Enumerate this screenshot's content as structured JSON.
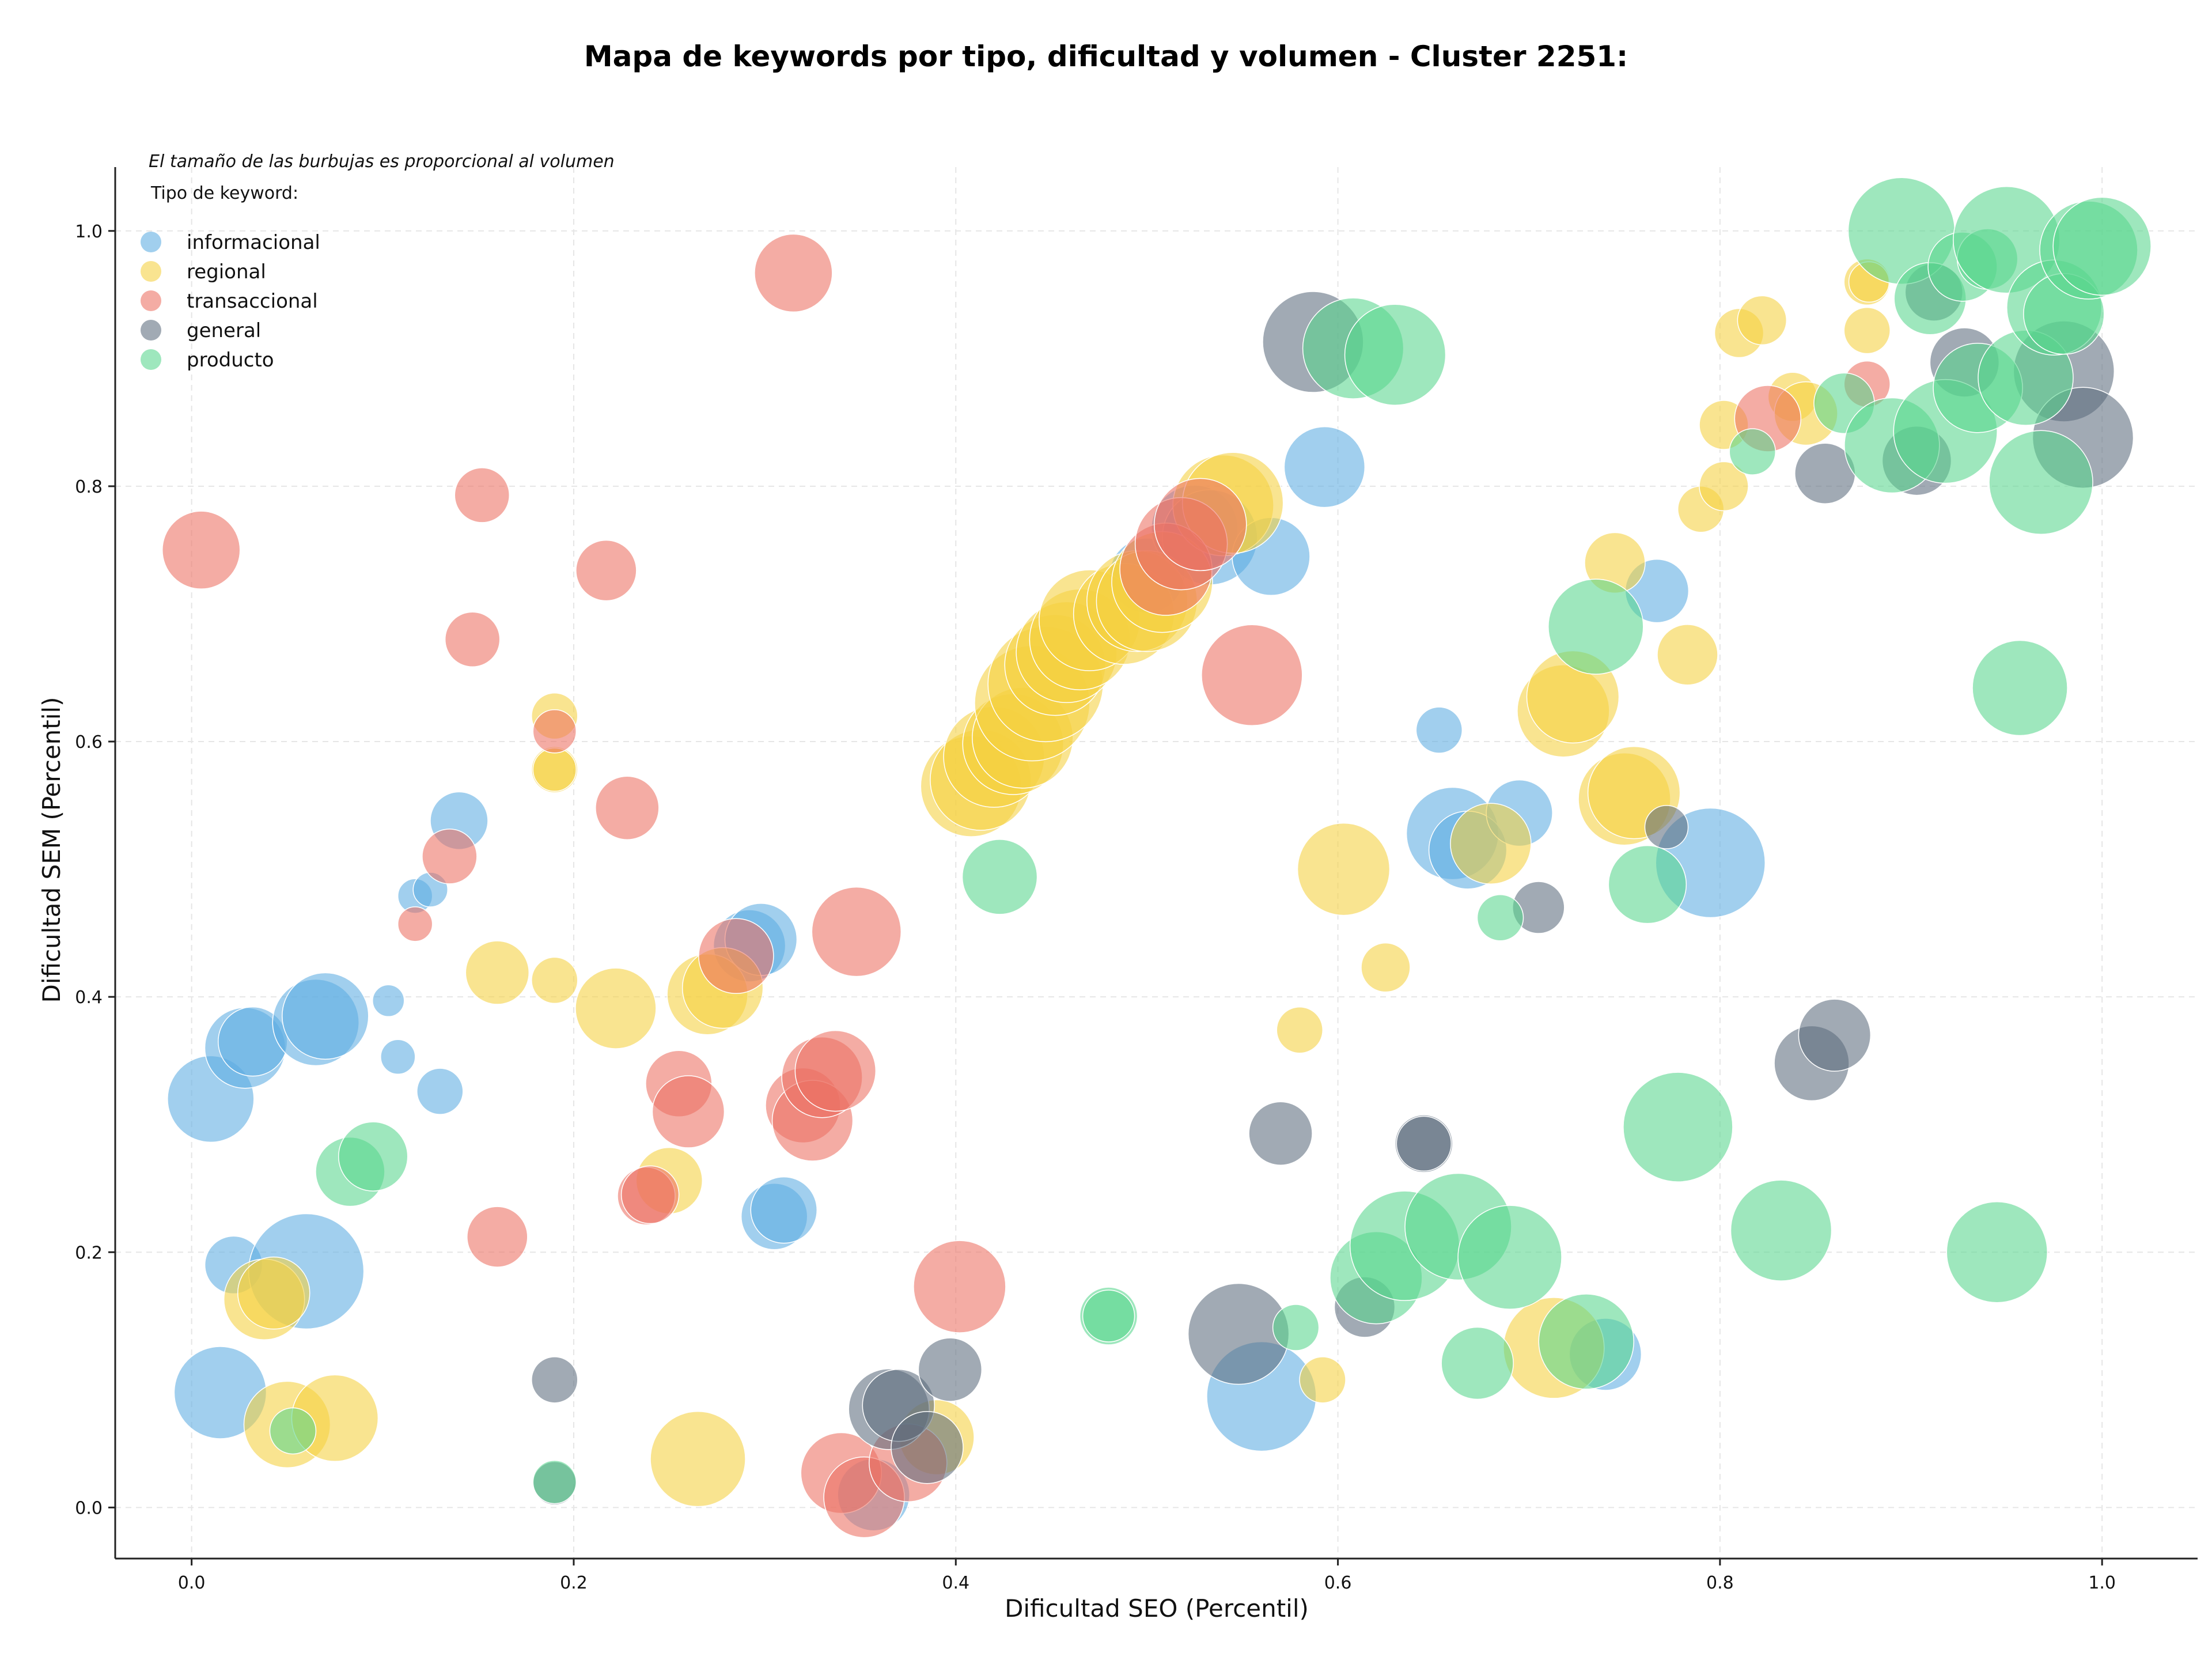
{
  "chart_data": {
    "type": "scatter",
    "title": "Mapa de keywords por tipo, dificultad y volumen - Cluster 2251:",
    "xlabel": "Dificultad SEO (Percentil)",
    "ylabel": "Dificultad SEM (Percentil)",
    "xlim": [
      -0.04,
      1.05
    ],
    "ylim": [
      -0.04,
      1.05
    ],
    "xticks": [
      "0.0",
      "0.2",
      "0.4",
      "0.6",
      "0.8",
      "1.0"
    ],
    "yticks": [
      "0.0",
      "0.2",
      "0.4",
      "0.6",
      "0.8",
      "1.0"
    ],
    "grid": true,
    "note": "El tamaño de las burbujas es proporcional al volumen",
    "legend_title": "Tipo de keyword:",
    "legend_position": "top-left",
    "series": [
      {
        "name": "informacional",
        "color": "#5DADE2",
        "points": [
          [
            0.01,
            0.32,
            3
          ],
          [
            0.015,
            0.09,
            3.2
          ],
          [
            0.022,
            0.19,
            2
          ],
          [
            0.028,
            0.36,
            2.8
          ],
          [
            0.032,
            0.365,
            2.4
          ],
          [
            0.06,
            0.185,
            4
          ],
          [
            0.065,
            0.38,
            3
          ],
          [
            0.07,
            0.385,
            3
          ],
          [
            0.103,
            0.397,
            1.1
          ],
          [
            0.108,
            0.353,
            1.2
          ],
          [
            0.117,
            0.479,
            1.2
          ],
          [
            0.125,
            0.484,
            1.2
          ],
          [
            0.13,
            0.326,
            1.6
          ],
          [
            0.14,
            0.538,
            2
          ],
          [
            0.292,
            0.44,
            2.5
          ],
          [
            0.298,
            0.445,
            2.5
          ],
          [
            0.305,
            0.228,
            2.3
          ],
          [
            0.31,
            0.233,
            2.3
          ],
          [
            0.357,
            0.01,
            2.5
          ],
          [
            0.5,
            0.73,
            2.6
          ],
          [
            0.525,
            0.767,
            3
          ],
          [
            0.533,
            0.76,
            3.3
          ],
          [
            0.565,
            0.745,
            2.7
          ],
          [
            0.56,
            0.087,
            3.8
          ],
          [
            0.593,
            0.815,
            2.8
          ],
          [
            0.653,
            0.609,
            1.6
          ],
          [
            0.66,
            0.528,
            3.2
          ],
          [
            0.668,
            0.515,
            2.7
          ],
          [
            0.695,
            0.544,
            2.3
          ],
          [
            0.74,
            0.12,
            2.5
          ],
          [
            0.767,
            0.718,
            2.2
          ],
          [
            0.795,
            0.505,
            3.8
          ]
        ]
      },
      {
        "name": "regional",
        "color": "#F4D03F",
        "points": [
          [
            0.038,
            0.163,
            2.8
          ],
          [
            0.043,
            0.168,
            2.5
          ],
          [
            0.05,
            0.065,
            3
          ],
          [
            0.075,
            0.07,
            3
          ],
          [
            0.16,
            0.419,
            2.2
          ],
          [
            0.19,
            0.413,
            1.6
          ],
          [
            0.19,
            0.62,
            1.6
          ],
          [
            0.19,
            0.578,
            1.6
          ],
          [
            0.19,
            0.578,
            1.5
          ],
          [
            0.222,
            0.391,
            2.8
          ],
          [
            0.25,
            0.256,
            2.3
          ],
          [
            0.265,
            0.038,
            3.3
          ],
          [
            0.27,
            0.402,
            2.8
          ],
          [
            0.278,
            0.407,
            2.8
          ],
          [
            0.39,
            0.055,
            2.6
          ],
          [
            0.408,
            0.565,
            3.5
          ],
          [
            0.413,
            0.57,
            3.5
          ],
          [
            0.42,
            0.588,
            3.5
          ],
          [
            0.43,
            0.598,
            3.5
          ],
          [
            0.435,
            0.603,
            3.5
          ],
          [
            0.44,
            0.63,
            4
          ],
          [
            0.447,
            0.645,
            4
          ],
          [
            0.452,
            0.66,
            3.5
          ],
          [
            0.458,
            0.67,
            3.5
          ],
          [
            0.465,
            0.68,
            3.5
          ],
          [
            0.47,
            0.695,
            3.5
          ],
          [
            0.488,
            0.7,
            3.5
          ],
          [
            0.495,
            0.71,
            3.5
          ],
          [
            0.5,
            0.71,
            3.5
          ],
          [
            0.508,
            0.725,
            3.5
          ],
          [
            0.54,
            0.785,
            3.5
          ],
          [
            0.545,
            0.787,
            3.5
          ],
          [
            0.592,
            0.1,
            1.6
          ],
          [
            0.58,
            0.374,
            1.6
          ],
          [
            0.603,
            0.5,
            3.2
          ],
          [
            0.625,
            0.423,
            1.7
          ],
          [
            0.68,
            0.52,
            2.8
          ],
          [
            0.713,
            0.125,
            3.5
          ],
          [
            0.718,
            0.624,
            3.2
          ],
          [
            0.723,
            0.635,
            3.2
          ],
          [
            0.745,
            0.74,
            2.1
          ],
          [
            0.75,
            0.555,
            3.2
          ],
          [
            0.755,
            0.56,
            3.2
          ],
          [
            0.783,
            0.668,
            2.1
          ],
          [
            0.79,
            0.782,
            1.6
          ],
          [
            0.802,
            0.848,
            1.7
          ],
          [
            0.802,
            0.8,
            1.7
          ],
          [
            0.81,
            0.92,
            1.7
          ],
          [
            0.822,
            0.93,
            1.7
          ],
          [
            0.838,
            0.87,
            1.7
          ],
          [
            0.845,
            0.857,
            2.2
          ],
          [
            0.877,
            0.96,
            1.6
          ],
          [
            0.877,
            0.922,
            1.6
          ],
          [
            0.878,
            0.96,
            1.4
          ]
        ]
      },
      {
        "name": "transaccional",
        "color": "#EC7063",
        "points": [
          [
            0.005,
            0.75,
            2.7
          ],
          [
            0.147,
            0.68,
            1.9
          ],
          [
            0.152,
            0.793,
            1.9
          ],
          [
            0.117,
            0.457,
            1.2
          ],
          [
            0.135,
            0.51,
            1.9
          ],
          [
            0.16,
            0.212,
            2.1
          ],
          [
            0.19,
            0.608,
            1.5
          ],
          [
            0.217,
            0.734,
            2.1
          ],
          [
            0.228,
            0.548,
            2.2
          ],
          [
            0.238,
            0.244,
            2
          ],
          [
            0.24,
            0.245,
            2
          ],
          [
            0.255,
            0.332,
            2.3
          ],
          [
            0.26,
            0.31,
            2.5
          ],
          [
            0.285,
            0.432,
            2.6
          ],
          [
            0.315,
            0.967,
            2.7
          ],
          [
            0.32,
            0.315,
            2.6
          ],
          [
            0.325,
            0.303,
            2.8
          ],
          [
            0.33,
            0.337,
            2.8
          ],
          [
            0.337,
            0.342,
            2.8
          ],
          [
            0.348,
            0.451,
            3.1
          ],
          [
            0.34,
            0.027,
            2.8
          ],
          [
            0.352,
            0.008,
            2.8
          ],
          [
            0.375,
            0.035,
            2.7
          ],
          [
            0.402,
            0.173,
            3.2
          ],
          [
            0.51,
            0.735,
            3.2
          ],
          [
            0.518,
            0.755,
            3.2
          ],
          [
            0.528,
            0.77,
            3.2
          ],
          [
            0.555,
            0.652,
            3.5
          ],
          [
            0.825,
            0.853,
            2.3
          ],
          [
            0.877,
            0.88,
            1.6
          ]
        ]
      },
      {
        "name": "general",
        "color": "#5D6D7E",
        "points": [
          [
            0.19,
            0.1,
            1.6
          ],
          [
            0.19,
            0.019,
            1.5
          ],
          [
            0.365,
            0.077,
            2.8
          ],
          [
            0.37,
            0.08,
            2.5
          ],
          [
            0.385,
            0.047,
            2.5
          ],
          [
            0.397,
            0.108,
            2.2
          ],
          [
            0.548,
            0.136,
            3.5
          ],
          [
            0.57,
            0.293,
            2.2
          ],
          [
            0.587,
            0.913,
            3.5
          ],
          [
            0.614,
            0.157,
            2.1
          ],
          [
            0.645,
            0.285,
            2
          ],
          [
            0.645,
            0.285,
            1.9
          ],
          [
            0.705,
            0.47,
            1.8
          ],
          [
            0.772,
            0.533,
            1.5
          ],
          [
            0.848,
            0.348,
            2.6
          ],
          [
            0.855,
            0.81,
            2.1
          ],
          [
            0.86,
            0.37,
            2.5
          ],
          [
            0.903,
            0.82,
            2.4
          ],
          [
            0.912,
            0.952,
            2
          ],
          [
            0.928,
            0.897,
            2.4
          ],
          [
            0.98,
            0.89,
            3.5
          ],
          [
            0.99,
            0.838,
            3.5
          ]
        ]
      },
      {
        "name": "producto",
        "color": "#58D68D",
        "points": [
          [
            0.053,
            0.06,
            1.6
          ],
          [
            0.083,
            0.263,
            2.4
          ],
          [
            0.095,
            0.275,
            2.4
          ],
          [
            0.19,
            0.02,
            1.5
          ],
          [
            0.423,
            0.494,
            2.6
          ],
          [
            0.48,
            0.15,
            2
          ],
          [
            0.48,
            0.15,
            1.8
          ],
          [
            0.578,
            0.141,
            1.6
          ],
          [
            0.608,
            0.908,
            3.5
          ],
          [
            0.63,
            0.903,
            3.5
          ],
          [
            0.62,
            0.18,
            3.2
          ],
          [
            0.635,
            0.205,
            3.8
          ],
          [
            0.663,
            0.22,
            3.7
          ],
          [
            0.673,
            0.113,
            2.5
          ],
          [
            0.685,
            0.462,
            1.6
          ],
          [
            0.69,
            0.196,
            3.6
          ],
          [
            0.73,
            0.13,
            3.3
          ],
          [
            0.735,
            0.69,
            3.3
          ],
          [
            0.762,
            0.488,
            2.7
          ],
          [
            0.778,
            0.298,
            3.8
          ],
          [
            0.817,
            0.827,
            1.6
          ],
          [
            0.832,
            0.217,
            3.5
          ],
          [
            0.865,
            0.865,
            2.1
          ],
          [
            0.89,
            0.832,
            3.3
          ],
          [
            0.895,
            1.0,
            3.7
          ],
          [
            0.91,
            0.947,
            2.5
          ],
          [
            0.918,
            0.843,
            3.6
          ],
          [
            0.927,
            0.972,
            2.4
          ],
          [
            0.935,
            0.877,
            3.1
          ],
          [
            0.94,
            0.978,
            2.1
          ],
          [
            0.945,
            0.2,
            3.5
          ],
          [
            0.95,
            0.993,
            3.7
          ],
          [
            0.957,
            0.642,
            3.3
          ],
          [
            0.96,
            0.885,
            3.3
          ],
          [
            0.968,
            0.803,
            3.6
          ],
          [
            0.975,
            0.94,
            3.3
          ],
          [
            0.98,
            0.935,
            2.8
          ],
          [
            0.993,
            0.985,
            3.4
          ],
          [
            1.0,
            0.988,
            3.4
          ]
        ]
      }
    ]
  }
}
